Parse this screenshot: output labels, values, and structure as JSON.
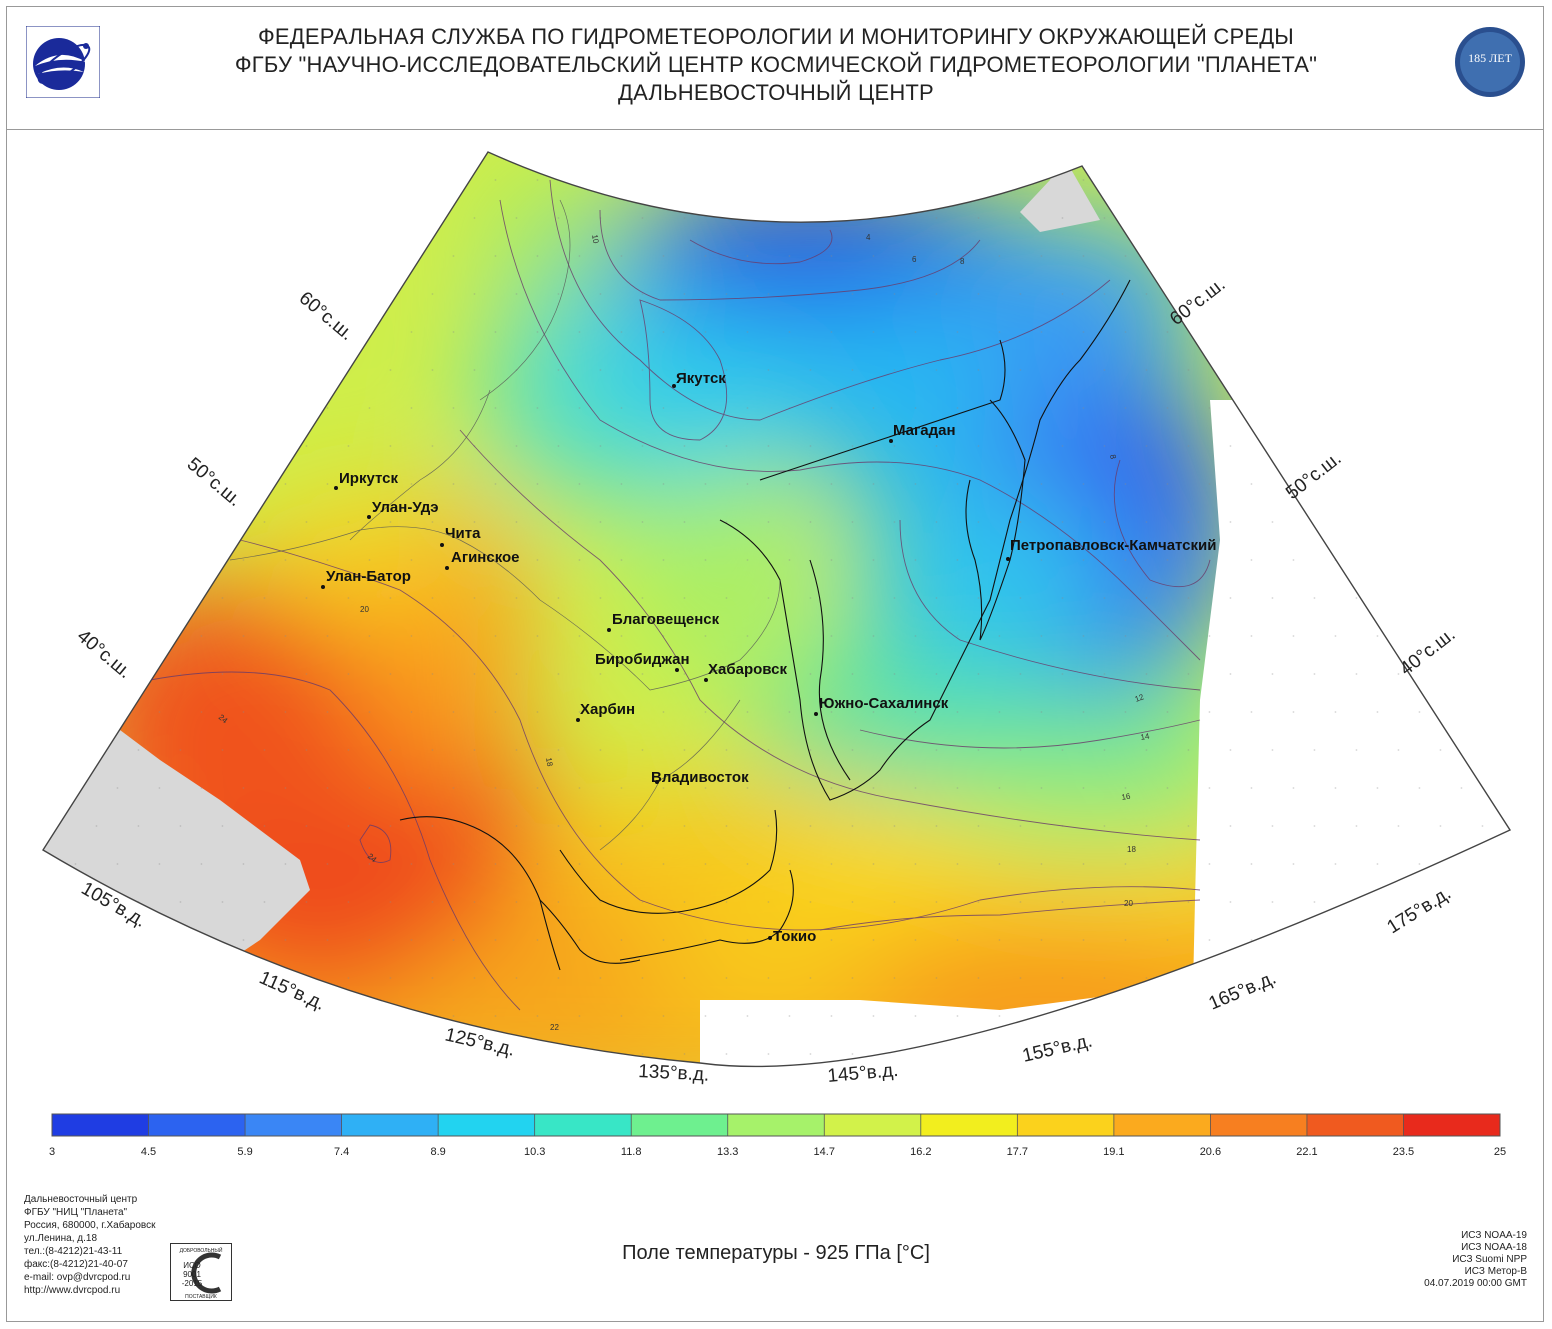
{
  "header": {
    "line1": "ФЕДЕРАЛЬНАЯ СЛУЖБА ПО ГИДРОМЕТЕОРОЛОГИИ И МОНИТОРИНГУ ОКРУЖАЮЩЕЙ СРЕДЫ",
    "line2": "ФГБУ \"НАУЧНО-ИССЛЕДОВАТЕЛЬСКИЙ ЦЕНТР КОСМИЧЕСКОЙ ГИДРОМЕТЕОРОЛОГИИ \"ПЛАНЕТА\"",
    "line3": "ДАЛЬНЕВОСТОЧНЫЙ ЦЕНТР",
    "logo_right_text": "185 ЛЕТ"
  },
  "map": {
    "lat_labels_left": [
      "60°с.ш.",
      "50°с.ш.",
      "40°с.ш."
    ],
    "lat_labels_right": [
      "60°с.ш.",
      "50°с.ш.",
      "40°с.ш."
    ],
    "lon_labels": [
      "105°в.д.",
      "115°в.д.",
      "125°в.д.",
      "135°в.д.",
      "145°в.д.",
      "155°в.д.",
      "165°в.д.",
      "175°в.д."
    ],
    "cities": [
      {
        "name": "Якутск"
      },
      {
        "name": "Магадан"
      },
      {
        "name": "Иркутск"
      },
      {
        "name": "Улан-Удэ"
      },
      {
        "name": "Чита"
      },
      {
        "name": "Агинское"
      },
      {
        "name": "Улан-Батор"
      },
      {
        "name": "Петропавловск-Камчатский"
      },
      {
        "name": "Благовещенск"
      },
      {
        "name": "Биробиджан"
      },
      {
        "name": "Хабаровск"
      },
      {
        "name": "Южно-Сахалинск"
      },
      {
        "name": "Харбин"
      },
      {
        "name": "Владивосток"
      },
      {
        "name": "Токио"
      }
    ],
    "contour_labels": [
      "4",
      "6",
      "8",
      "10",
      "8",
      "20",
      "24",
      "24",
      "18",
      "12",
      "14",
      "16",
      "18",
      "20",
      "22"
    ]
  },
  "colorbar": {
    "ticks": [
      "3",
      "4.5",
      "5.9",
      "7.4",
      "8.9",
      "10.3",
      "11.8",
      "13.3",
      "14.7",
      "16.2",
      "17.7",
      "19.1",
      "20.6",
      "22.1",
      "23.5",
      "25"
    ],
    "colors": [
      "#1f3de3",
      "#2c63f0",
      "#3a86f5",
      "#2fb0f5",
      "#22d3f0",
      "#38e6c6",
      "#6ef08f",
      "#a6f26a",
      "#d2f24a",
      "#f2ee1e",
      "#fbd21c",
      "#fbaa1e",
      "#f77f20",
      "#f05a1f",
      "#e82a1c"
    ]
  },
  "caption": "Поле температуры - 925 ГПа [°C]",
  "footer": {
    "org_lines": [
      "Дальневосточный центр",
      "ФГБУ \"НИЦ \"Планета\"",
      "Россия, 680000, г.Хабаровск",
      "ул.Ленина, д.18",
      "тел.:(8-4212)21-43-11",
      "факс:(8-4212)21-40-07",
      "e-mail: ovp@dvrcpod.ru",
      "http://www.dvrcpod.ru"
    ],
    "iso_lines": [
      "ДОБРОВОЛЬНЫЙ",
      "ИСО",
      "9001",
      "-2015",
      "ПОСТАВЩИК"
    ],
    "sat_lines": [
      "ИСЗ NOAA-19",
      "ИСЗ NOAA-18",
      "ИСЗ Suomi NPP",
      "ИСЗ Метор-B",
      "04.07.2019 00:00 GMT"
    ]
  }
}
